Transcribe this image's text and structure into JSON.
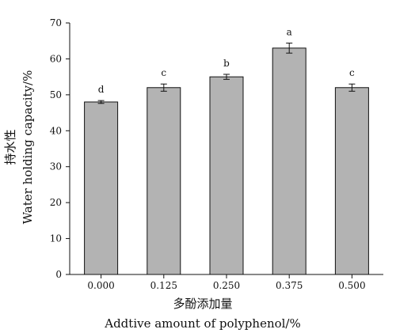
{
  "chart_data": {
    "type": "bar",
    "categories": [
      "0.000",
      "0.125",
      "0.250",
      "0.375",
      "0.500"
    ],
    "values": [
      48,
      52,
      55,
      63,
      52
    ],
    "errors": [
      0.4,
      1.0,
      0.7,
      1.4,
      1.0
    ],
    "labels": [
      "d",
      "c",
      "b",
      "a",
      "c"
    ],
    "xlabel_zh": "多酚添加量",
    "xlabel_en": "Addtive amount of polyphenol/%",
    "ylabel_zh": "持水性",
    "ylabel_en": "Water holding capacity/%",
    "ylim": [
      0,
      70
    ],
    "yticks": [
      0,
      10,
      20,
      30,
      40,
      50,
      60,
      70
    ],
    "grid": false,
    "colors": {
      "bar_fill": "#b3b3b3",
      "bar_stroke": "#111111",
      "axis": "#111111",
      "text": "#111111"
    }
  }
}
